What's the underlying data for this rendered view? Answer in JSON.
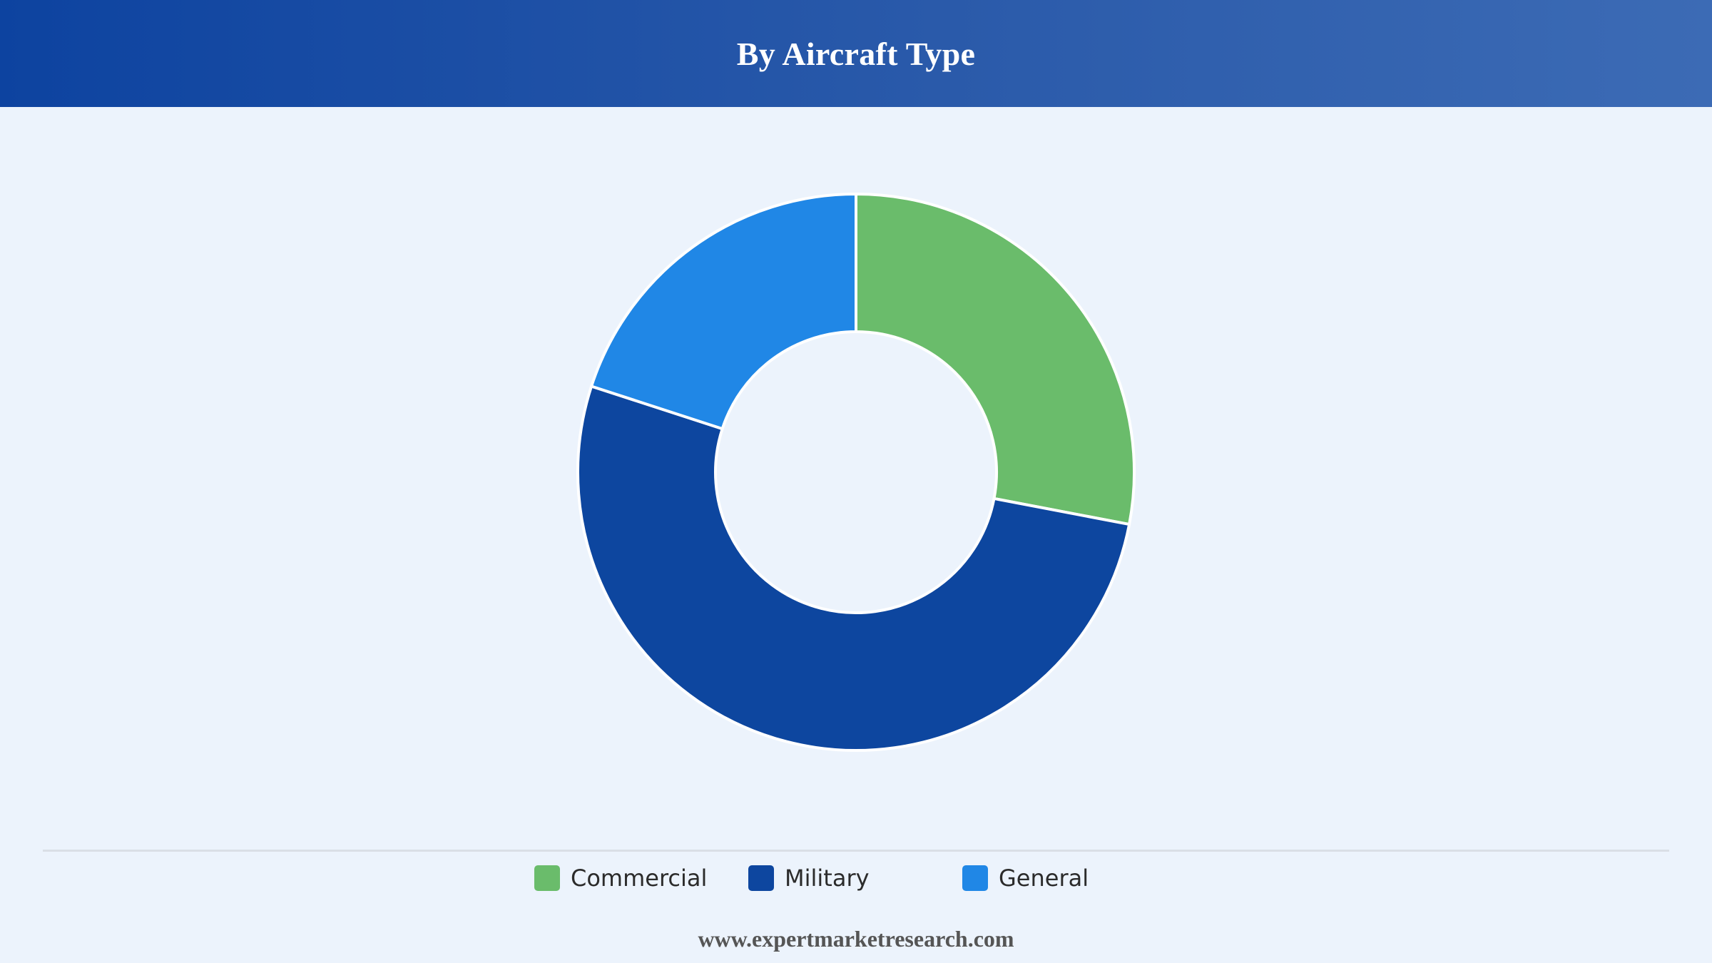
{
  "header": {
    "title": "By Aircraft Type"
  },
  "chart_data": {
    "type": "pie",
    "variant": "donut",
    "categories": [
      "Commercial",
      "Military",
      "General"
    ],
    "values": [
      28,
      52,
      20
    ],
    "colors": [
      "#6abc6b",
      "#0d469f",
      "#2087e6"
    ],
    "legend_position": "bottom"
  },
  "legend": {
    "items": [
      {
        "label": "Commercial",
        "color": "#6abc6b"
      },
      {
        "label": "Military",
        "color": "#0d469f"
      },
      {
        "label": "General",
        "color": "#2087e6"
      }
    ]
  },
  "footer": {
    "source": "www.expertmarketresearch.com"
  }
}
